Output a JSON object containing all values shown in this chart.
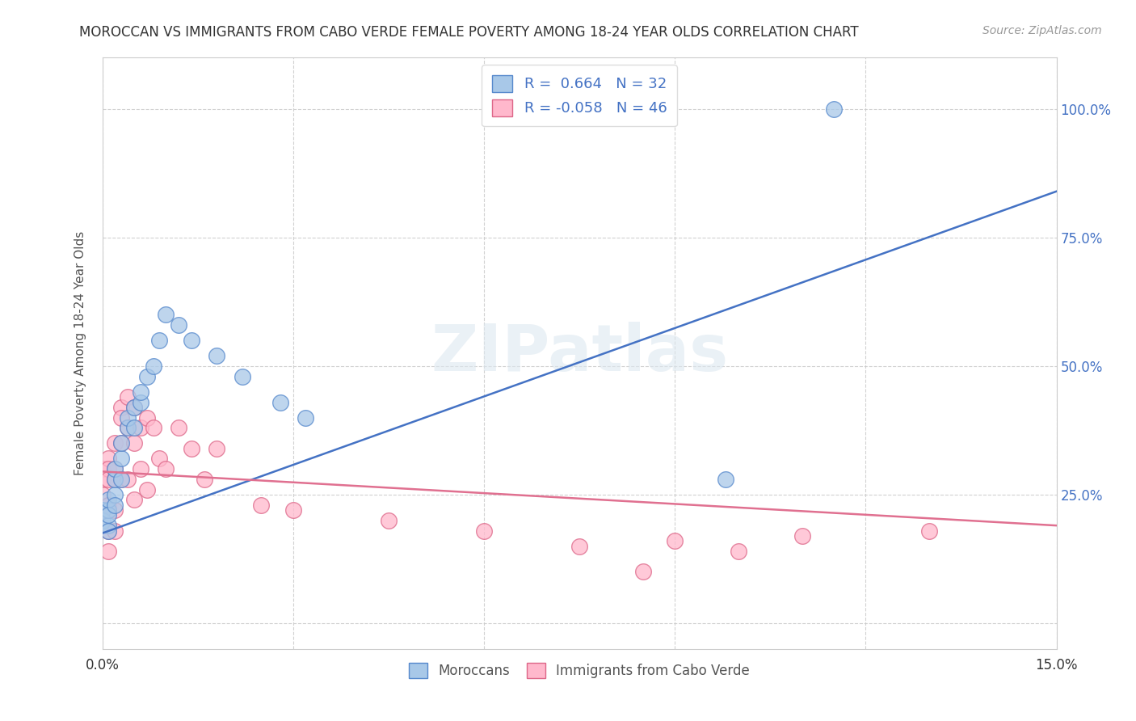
{
  "title": "MOROCCAN VS IMMIGRANTS FROM CABO VERDE FEMALE POVERTY AMONG 18-24 YEAR OLDS CORRELATION CHART",
  "source": "Source: ZipAtlas.com",
  "ylabel": "Female Poverty Among 18-24 Year Olds",
  "xmin": 0.0,
  "xmax": 0.15,
  "ymin": -0.05,
  "ymax": 1.1,
  "color_moroccan_fill": "#a8c8e8",
  "color_moroccan_edge": "#5588cc",
  "color_cabo_verde_fill": "#ffb8cc",
  "color_cabo_verde_edge": "#dd6688",
  "color_line_moroccan": "#4472c4",
  "color_line_cabo_verde": "#e07090",
  "legend_label1": "Moroccans",
  "legend_label2": "Immigrants from Cabo Verde",
  "grid_color": "#cccccc",
  "background_color": "#ffffff",
  "moroccan_x": [
    0.0,
    0.0,
    0.001,
    0.001,
    0.001,
    0.001,
    0.001,
    0.002,
    0.002,
    0.002,
    0.002,
    0.003,
    0.003,
    0.003,
    0.004,
    0.004,
    0.005,
    0.005,
    0.006,
    0.006,
    0.007,
    0.008,
    0.009,
    0.01,
    0.012,
    0.014,
    0.018,
    0.022,
    0.028,
    0.032,
    0.098,
    0.115
  ],
  "moroccan_y": [
    0.22,
    0.2,
    0.19,
    0.22,
    0.24,
    0.21,
    0.18,
    0.25,
    0.28,
    0.23,
    0.3,
    0.32,
    0.28,
    0.35,
    0.38,
    0.4,
    0.42,
    0.38,
    0.43,
    0.45,
    0.48,
    0.5,
    0.55,
    0.6,
    0.58,
    0.55,
    0.52,
    0.48,
    0.43,
    0.4,
    0.28,
    1.0
  ],
  "cabo_verde_x": [
    0.0,
    0.0,
    0.0,
    0.0,
    0.001,
    0.001,
    0.001,
    0.001,
    0.001,
    0.001,
    0.002,
    0.002,
    0.002,
    0.002,
    0.002,
    0.003,
    0.003,
    0.003,
    0.003,
    0.004,
    0.004,
    0.004,
    0.005,
    0.005,
    0.005,
    0.006,
    0.006,
    0.007,
    0.007,
    0.008,
    0.009,
    0.01,
    0.012,
    0.014,
    0.016,
    0.018,
    0.025,
    0.03,
    0.045,
    0.06,
    0.075,
    0.085,
    0.09,
    0.1,
    0.11,
    0.13
  ],
  "cabo_verde_y": [
    0.3,
    0.28,
    0.25,
    0.22,
    0.32,
    0.3,
    0.28,
    0.23,
    0.18,
    0.14,
    0.35,
    0.3,
    0.28,
    0.22,
    0.18,
    0.42,
    0.4,
    0.35,
    0.28,
    0.44,
    0.38,
    0.28,
    0.42,
    0.35,
    0.24,
    0.38,
    0.3,
    0.4,
    0.26,
    0.38,
    0.32,
    0.3,
    0.38,
    0.34,
    0.28,
    0.34,
    0.23,
    0.22,
    0.2,
    0.18,
    0.15,
    0.1,
    0.16,
    0.14,
    0.17,
    0.18
  ],
  "moroccan_line_x0": 0.0,
  "moroccan_line_y0": 0.175,
  "moroccan_line_x1": 0.15,
  "moroccan_line_y1": 0.84,
  "cabo_line_x0": 0.0,
  "cabo_line_y0": 0.295,
  "cabo_line_x1": 0.15,
  "cabo_line_y1": 0.19
}
